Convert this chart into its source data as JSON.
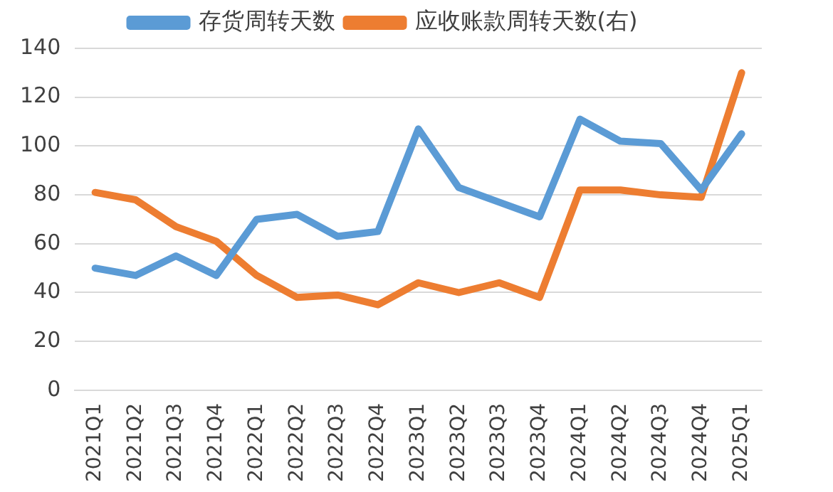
{
  "chart_data": {
    "type": "line",
    "categories": [
      "2021Q1",
      "2021Q2",
      "2021Q3",
      "2021Q4",
      "2022Q1",
      "2022Q2",
      "2022Q3",
      "2022Q4",
      "2023Q1",
      "2023Q2",
      "2023Q3",
      "2023Q4",
      "2024Q1",
      "2024Q2",
      "2024Q3",
      "2024Q4",
      "2025Q1"
    ],
    "series": [
      {
        "name": "存货周转天数",
        "color": "#5b9bd5",
        "values": [
          50,
          47,
          55,
          47,
          70,
          72,
          63,
          65,
          107,
          83,
          77,
          71,
          111,
          102,
          101,
          82,
          105
        ]
      },
      {
        "name": "应收账款周转天数(右)",
        "color": "#ed7d31",
        "values": [
          81,
          78,
          67,
          61,
          47,
          38,
          39,
          35,
          44,
          40,
          44,
          38,
          82,
          82,
          80,
          79,
          130
        ]
      }
    ],
    "ylim": [
      0,
      140
    ],
    "yticks": [
      0,
      20,
      40,
      60,
      80,
      100,
      120,
      140
    ],
    "grid": "y",
    "legend": "top",
    "marker": "none",
    "line_style": "solid"
  }
}
